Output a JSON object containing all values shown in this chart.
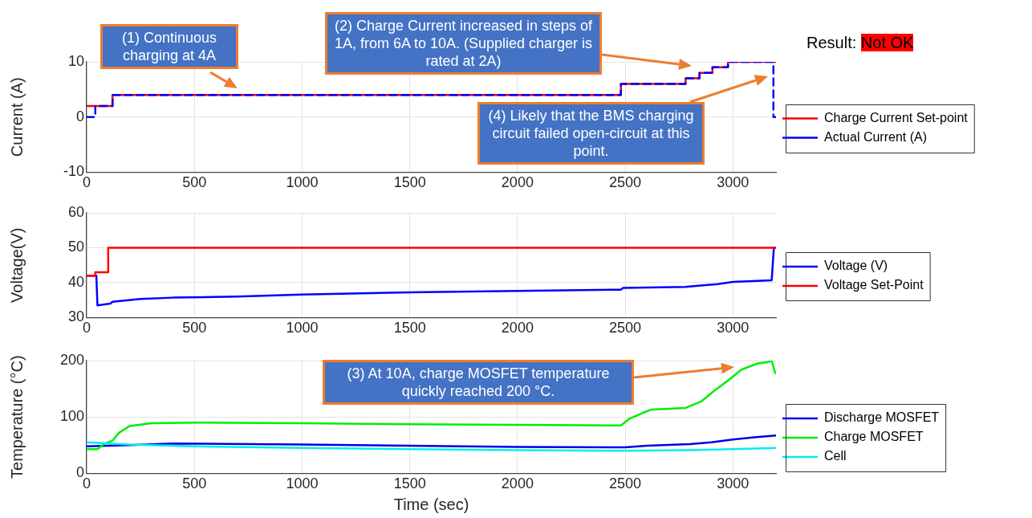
{
  "chart_data": [
    {
      "type": "line",
      "ylabel": "Current (A)",
      "xlim": [
        0,
        3200
      ],
      "xticks": [
        0,
        500,
        1000,
        1500,
        2000,
        2500,
        3000
      ],
      "ylim": [
        -10,
        10
      ],
      "yticks": [
        -10,
        0,
        10
      ],
      "grid": true,
      "legend": "right",
      "marker": "none",
      "series": [
        {
          "name": "Charge Current Set-point",
          "type": "step",
          "color": "#ff0000",
          "line_style": "solid",
          "x": [
            0,
            120,
            2480,
            2780,
            2845,
            2905,
            2977,
            3200
          ],
          "values": [
            2,
            4,
            6,
            7,
            8,
            9,
            10,
            10
          ]
        },
        {
          "name": "Actual Current (A)",
          "type": "step",
          "color": "#0000ff",
          "line_style": "dashed",
          "x": [
            0,
            40,
            120,
            2480,
            2780,
            2845,
            2905,
            2977,
            3188,
            3200
          ],
          "values": [
            0,
            2,
            4,
            6,
            7,
            8,
            9,
            10,
            0,
            0
          ]
        }
      ],
      "annotations": [
        "(1) Continuous charging at 4A",
        "(2) Charge Current increased in steps of 1A, from 6A to 10A. (Supplied charger is rated at 2A)",
        "(4) Likely that the BMS charging circuit failed open-circuit at this point.",
        "Result: Not OK"
      ]
    },
    {
      "type": "line",
      "ylabel": "Voltage(V)",
      "xlim": [
        0,
        3200
      ],
      "xticks": [
        0,
        500,
        1000,
        1500,
        2000,
        2500,
        3000
      ],
      "ylim": [
        30,
        60
      ],
      "yticks": [
        30,
        40,
        50,
        60
      ],
      "grid": true,
      "legend": "right",
      "marker": "none",
      "series": [
        {
          "name": "Voltage (V)",
          "type": "line",
          "color": "#0000ff",
          "x": [
            0,
            45,
            50,
            110,
            120,
            250,
            400,
            700,
            1000,
            1500,
            2000,
            2480,
            2490,
            2780,
            2850,
            2930,
            3000,
            3180,
            3190,
            3200
          ],
          "values": [
            42,
            42,
            33.5,
            34,
            34.5,
            35.3,
            35.7,
            36,
            36.6,
            37.2,
            37.6,
            38,
            38.5,
            38.8,
            39.2,
            39.6,
            40.2,
            40.7,
            50,
            50
          ]
        },
        {
          "name": "Voltage Set-Point",
          "type": "step",
          "color": "#ff0000",
          "x": [
            0,
            40,
            100,
            3200
          ],
          "values": [
            42,
            43,
            50,
            50
          ]
        }
      ]
    },
    {
      "type": "line",
      "xlabel": "Time (sec)",
      "ylabel": "Temperature (°C)",
      "xlim": [
        0,
        3200
      ],
      "xticks": [
        0,
        500,
        1000,
        1500,
        2000,
        2500,
        3000
      ],
      "ylim": [
        0,
        200
      ],
      "yticks": [
        0,
        100,
        200
      ],
      "grid": true,
      "legend": "right",
      "marker": "none",
      "series": [
        {
          "name": "Discharge MOSFET",
          "type": "line",
          "color": "#0000e6",
          "x": [
            0,
            200,
            400,
            1000,
            2000,
            2500,
            2600,
            2800,
            2900,
            3000,
            3100,
            3200
          ],
          "values": [
            48,
            50,
            53,
            51,
            47,
            46,
            49,
            52,
            55,
            60,
            64,
            67
          ]
        },
        {
          "name": "Charge MOSFET",
          "type": "line",
          "color": "#00ee00",
          "x": [
            0,
            50,
            80,
            120,
            150,
            200,
            300,
            500,
            1000,
            1500,
            2000,
            2480,
            2520,
            2580,
            2620,
            2780,
            2855,
            2905,
            2975,
            3040,
            3115,
            3160,
            3180,
            3196
          ],
          "values": [
            43,
            43,
            52,
            58,
            72,
            84,
            89,
            90,
            89,
            87,
            86,
            85,
            97,
            107,
            113,
            116,
            128,
            144,
            164,
            184,
            195,
            197,
            200,
            178
          ]
        },
        {
          "name": "Cell",
          "type": "line",
          "color": "#00eeee",
          "x": [
            0,
            200,
            500,
            1000,
            2000,
            2500,
            2800,
            3000,
            3200
          ],
          "values": [
            55,
            51,
            48,
            45,
            41,
            40,
            41,
            43,
            45
          ]
        }
      ],
      "annotations": [
        "(3) At 10A, charge MOSFET temperature quickly reached 200 °C."
      ]
    }
  ]
}
